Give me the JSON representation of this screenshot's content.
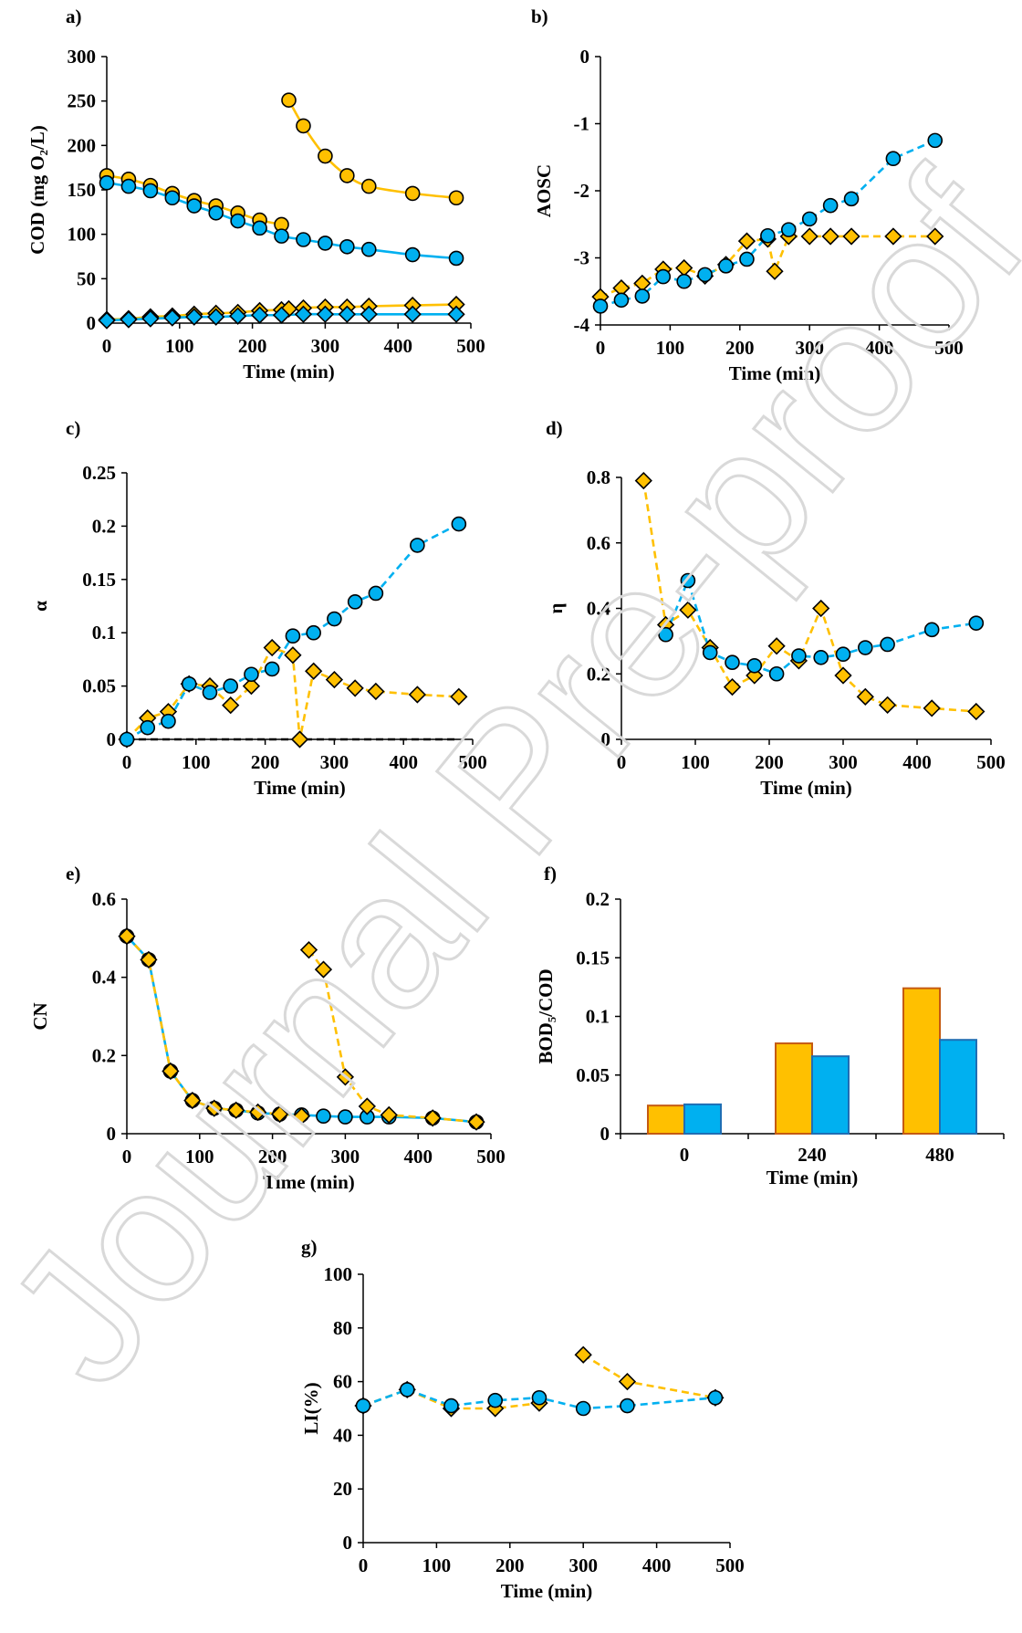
{
  "colors": {
    "orange": "#FFC000",
    "orange_edge": "#C55A11",
    "blue": "#00B0F0",
    "blue_edge": "#1F6EB4",
    "marker_edge": "#000000"
  },
  "watermark": "Journal Pre-proof",
  "chart_data": [
    {
      "id": "a",
      "panel_label": "a)",
      "type": "scatter",
      "xlabel": "Time (min)",
      "ylabel": "COD (mg O₂/L)",
      "xlim": [
        0,
        500
      ],
      "ylim": [
        0,
        300
      ],
      "xticks": [
        "0",
        "100",
        "200",
        "300",
        "400",
        "500"
      ],
      "yticks": [
        "0",
        "50",
        "100",
        "150",
        "200",
        "250",
        "300"
      ],
      "series": [
        {
          "color": "orange",
          "marker": "circle",
          "line": "solid",
          "x": [
            0,
            30,
            60,
            90,
            120,
            150,
            180,
            210,
            240
          ],
          "y": [
            166,
            162,
            155,
            146,
            138,
            132,
            124,
            116,
            111
          ]
        },
        {
          "color": "orange",
          "marker": "circle",
          "line": "solid",
          "x": [
            250,
            270,
            300,
            330,
            360,
            420,
            480
          ],
          "y": [
            251,
            222,
            188,
            166,
            154,
            146,
            141
          ]
        },
        {
          "color": "blue",
          "marker": "circle",
          "line": "solid",
          "x": [
            0,
            30,
            60,
            90,
            120,
            150,
            180,
            210,
            240,
            270,
            300,
            330,
            360,
            420,
            480
          ],
          "y": [
            158,
            154,
            149,
            141,
            132,
            124,
            115,
            107,
            98,
            94,
            90,
            86,
            83,
            77,
            73
          ]
        },
        {
          "color": "orange",
          "marker": "diamond",
          "line": "solid",
          "x": [
            0,
            30,
            60,
            90,
            120,
            150,
            180,
            210,
            240,
            250,
            270,
            300,
            330,
            360,
            420,
            480
          ],
          "y": [
            4,
            5,
            7,
            8,
            10,
            11,
            12,
            14,
            15,
            16,
            17,
            18,
            18,
            19,
            20,
            21
          ]
        },
        {
          "color": "blue",
          "marker": "diamond",
          "line": "solid",
          "x": [
            0,
            30,
            60,
            90,
            120,
            150,
            180,
            210,
            240,
            270,
            300,
            330,
            360,
            420,
            480
          ],
          "y": [
            3,
            4,
            5,
            6,
            7,
            7,
            8,
            9,
            9,
            10,
            10,
            10,
            10,
            10,
            10
          ]
        }
      ]
    },
    {
      "id": "b",
      "panel_label": "b)",
      "type": "line",
      "xlabel": "Time (min)",
      "ylabel": "AOSC",
      "xlim": [
        0,
        500
      ],
      "ylim": [
        -4,
        0
      ],
      "xticks": [
        "0",
        "100",
        "200",
        "300",
        "400",
        "500"
      ],
      "yticks": [
        "-4",
        "-3",
        "-2",
        "-1",
        "0"
      ],
      "series": [
        {
          "color": "orange",
          "marker": "diamond",
          "line": "dashed",
          "x": [
            0,
            30,
            60,
            90,
            120,
            150,
            180,
            210,
            240,
            250,
            270,
            300,
            330,
            360,
            420,
            480
          ],
          "y": [
            -3.58,
            -3.45,
            -3.38,
            -3.17,
            -3.15,
            -3.27,
            -3.1,
            -2.75,
            -2.72,
            -3.2,
            -2.68,
            -2.68,
            -2.68,
            -2.68,
            -2.68,
            -2.68
          ]
        },
        {
          "color": "blue",
          "marker": "circle",
          "line": "dashed",
          "x": [
            0,
            30,
            60,
            90,
            120,
            150,
            180,
            210,
            240,
            270,
            300,
            330,
            360,
            420,
            480
          ],
          "y": [
            -3.72,
            -3.63,
            -3.57,
            -3.28,
            -3.35,
            -3.25,
            -3.12,
            -3.02,
            -2.67,
            -2.58,
            -2.42,
            -2.22,
            -2.12,
            -1.52,
            -1.25
          ]
        }
      ]
    },
    {
      "id": "c",
      "panel_label": "c)",
      "type": "line",
      "xlabel": "Time (min)",
      "ylabel": "α",
      "xlim": [
        0,
        500
      ],
      "ylim": [
        0,
        0.25
      ],
      "xticks": [
        "0",
        "100",
        "200",
        "300",
        "400",
        "500"
      ],
      "yticks": [
        "0",
        "0.05",
        "0.1",
        "0.15",
        "0.2",
        "0.25"
      ],
      "series": [
        {
          "color": "orange",
          "marker": "diamond",
          "line": "dashed",
          "x": [
            0,
            30,
            60,
            90,
            120,
            150,
            180,
            210,
            240,
            250,
            270,
            300,
            330,
            360,
            420,
            480
          ],
          "y": [
            0,
            0.02,
            0.026,
            0.052,
            0.05,
            0.032,
            0.05,
            0.086,
            0.079,
            0,
            0.064,
            0.056,
            0.048,
            0.045,
            0.042,
            0.04
          ]
        },
        {
          "color": "blue",
          "marker": "circle",
          "line": "dashed",
          "x": [
            0,
            30,
            60,
            90,
            120,
            150,
            180,
            210,
            240,
            270,
            300,
            330,
            360,
            420,
            480
          ],
          "y": [
            0,
            0.011,
            0.017,
            0.052,
            0.044,
            0.05,
            0.061,
            0.066,
            0.097,
            0.1,
            0.113,
            0.129,
            0.137,
            0.182,
            0.202
          ]
        },
        {
          "color": "black",
          "marker": "none",
          "line": "dashed",
          "x": [
            0,
            480
          ],
          "y": [
            0,
            0
          ]
        }
      ]
    },
    {
      "id": "d",
      "panel_label": "d)",
      "type": "line",
      "xlabel": "Time (min)",
      "ylabel": "η",
      "xlim": [
        0,
        500
      ],
      "ylim": [
        0,
        0.8
      ],
      "xticks": [
        "0",
        "100",
        "200",
        "300",
        "400",
        "500"
      ],
      "yticks": [
        "0",
        "0.2",
        "0.4",
        "0.6",
        "0.8"
      ],
      "series": [
        {
          "color": "orange",
          "marker": "diamond",
          "line": "dashed",
          "x": [
            30,
            60,
            90,
            120,
            150,
            180,
            210,
            240,
            270,
            300,
            330,
            360,
            420,
            480
          ],
          "y": [
            0.79,
            0.35,
            0.395,
            0.28,
            0.16,
            0.195,
            0.285,
            0.24,
            0.4,
            0.195,
            0.13,
            0.105,
            0.095,
            0.085
          ]
        },
        {
          "color": "blue",
          "marker": "circle",
          "line": "dashed",
          "x": [
            60,
            90,
            120,
            150,
            180,
            210,
            240,
            270,
            300,
            330,
            360,
            420,
            480
          ],
          "y": [
            0.32,
            0.485,
            0.265,
            0.235,
            0.225,
            0.2,
            0.255,
            0.25,
            0.26,
            0.28,
            0.29,
            0.335,
            0.355
          ]
        }
      ]
    },
    {
      "id": "e",
      "panel_label": "e)",
      "type": "line",
      "xlabel": "Time (min)",
      "ylabel": "CN",
      "xlim": [
        0,
        500
      ],
      "ylim": [
        0,
        0.6
      ],
      "xticks": [
        "0",
        "100",
        "200",
        "300",
        "400",
        "500"
      ],
      "yticks": [
        "0",
        "0.2",
        "0.4",
        "0.6"
      ],
      "series": [
        {
          "color": "blue",
          "marker": "circle",
          "line": "solid",
          "x": [
            0,
            30,
            60,
            90,
            120,
            150,
            180,
            210,
            240,
            270,
            300,
            330,
            360,
            420,
            480
          ],
          "y": [
            0.505,
            0.445,
            0.16,
            0.085,
            0.065,
            0.06,
            0.053,
            0.05,
            0.048,
            0.045,
            0.043,
            0.043,
            0.043,
            0.04,
            0.03
          ]
        },
        {
          "color": "orange",
          "marker": "diamond",
          "line": "dashed",
          "x": [
            0,
            30,
            60,
            90,
            120,
            150,
            180,
            210,
            240
          ],
          "y": [
            0.505,
            0.445,
            0.16,
            0.085,
            0.065,
            0.06,
            0.055,
            0.05,
            0.045
          ]
        },
        {
          "color": "orange",
          "marker": "diamond",
          "line": "dashed",
          "x": [
            250,
            270,
            300,
            330,
            360,
            420,
            480
          ],
          "y": [
            0.47,
            0.42,
            0.145,
            0.07,
            0.048,
            0.04,
            0.03
          ]
        }
      ]
    },
    {
      "id": "f",
      "panel_label": "f)",
      "type": "bar",
      "xlabel": "Time (min)",
      "ylabel": "BOD₅/COD",
      "categories": [
        "0",
        "240",
        "480"
      ],
      "ylim": [
        0,
        0.2
      ],
      "yticks": [
        "0",
        "0.05",
        "0.1",
        "0.15",
        "0.2"
      ],
      "series": [
        {
          "color": "orange",
          "values": [
            0.024,
            0.077,
            0.124
          ]
        },
        {
          "color": "blue",
          "values": [
            0.025,
            0.066,
            0.08
          ]
        }
      ]
    },
    {
      "id": "g",
      "panel_label": "g)",
      "type": "line",
      "xlabel": "Time (min)",
      "ylabel": "LI(%)",
      "xlim": [
        0,
        500
      ],
      "ylim": [
        0,
        100
      ],
      "xticks": [
        "0",
        "100",
        "200",
        "300",
        "400",
        "500"
      ],
      "yticks": [
        "0",
        "20",
        "40",
        "60",
        "80",
        "100"
      ],
      "series": [
        {
          "color": "orange",
          "marker": "diamond",
          "line": "dashed",
          "x": [
            0,
            60,
            120,
            180,
            240
          ],
          "y": [
            51,
            57,
            50,
            50,
            52
          ]
        },
        {
          "color": "orange",
          "marker": "diamond",
          "line": "dashed",
          "x": [
            300,
            360,
            480
          ],
          "y": [
            70,
            60,
            54
          ]
        },
        {
          "color": "blue",
          "marker": "circle",
          "line": "dashed",
          "x": [
            0,
            60,
            120,
            180,
            240,
            300,
            360,
            480
          ],
          "y": [
            51,
            57,
            51,
            53,
            54,
            50,
            51,
            54
          ]
        }
      ]
    }
  ]
}
